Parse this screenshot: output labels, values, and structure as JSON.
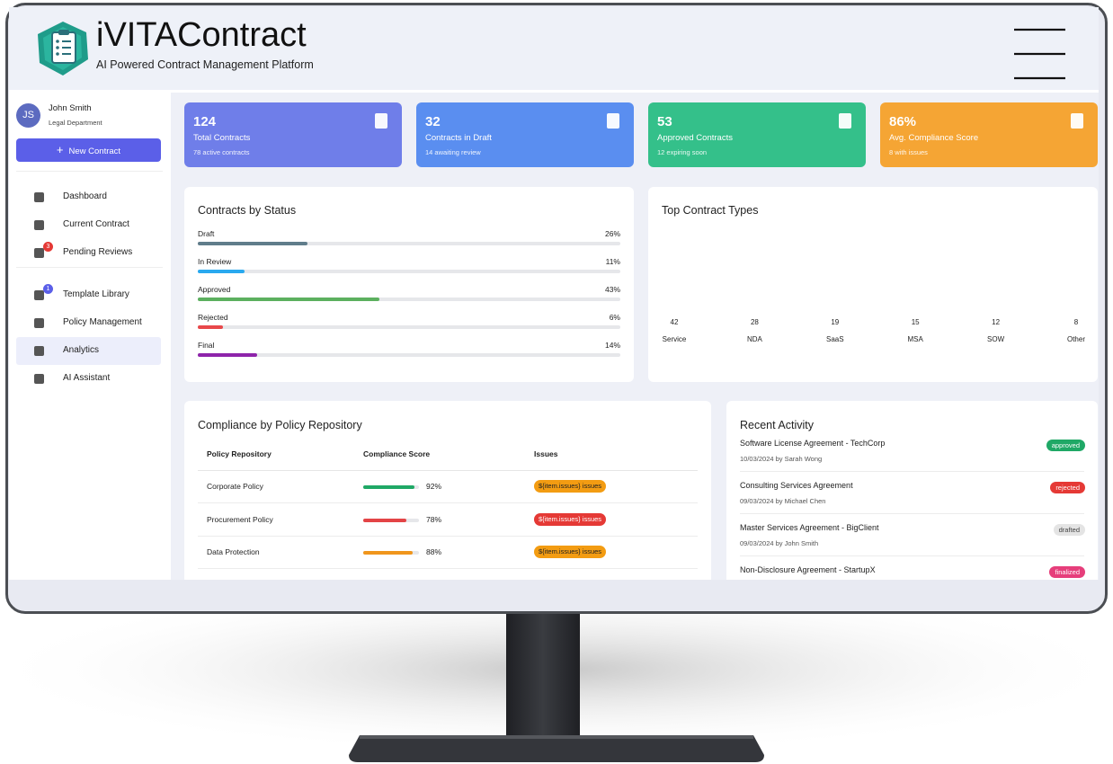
{
  "header": {
    "title": "iVITAContract",
    "subtitle": "AI Powered Contract Management Platform"
  },
  "user": {
    "initials": "JS",
    "name": "John Smith",
    "department": "Legal Department"
  },
  "new_contract_button": "New Contract",
  "nav": [
    {
      "label": "Dashboard"
    },
    {
      "label": "Current Contract"
    },
    {
      "label": "Pending Reviews",
      "badge": 3
    },
    {
      "label": "Template Library",
      "badge": 1
    },
    {
      "label": "Policy Management"
    },
    {
      "label": "Analytics",
      "active": true
    },
    {
      "label": "AI Assistant"
    }
  ],
  "stats": [
    {
      "value": 124,
      "label": "Total Contracts",
      "note": "78 active contracts",
      "color": "#6f7ee9"
    },
    {
      "value": 32,
      "label": "Contracts in Draft",
      "note": "14 awaiting review",
      "color": "#5a8ef0"
    },
    {
      "value": 53,
      "label": "Approved Contracts",
      "note": "12 expiring soon",
      "color": "#34c08a"
    },
    {
      "value": "86%",
      "label": "Avg. Compliance Score",
      "note": "8 with issues",
      "color": "#f5a534"
    }
  ],
  "status_panel": {
    "title": "Contracts by Status",
    "rows": [
      {
        "label": "Draft",
        "value": 26,
        "value_label": "26%",
        "color": "#607d8b"
      },
      {
        "label": "In Review",
        "value": 11,
        "value_label": "11%",
        "color": "#29a9ef"
      },
      {
        "label": "Approved",
        "value": 43,
        "value_label": "43%",
        "color": "#5cb05f"
      },
      {
        "label": "Rejected",
        "value": 6,
        "value_label": "6%",
        "color": "#e8484a"
      },
      {
        "label": "Final",
        "value": 14,
        "value_label": "14%",
        "color": "#8e24aa"
      }
    ]
  },
  "types_panel": {
    "title": "Top Contract Types",
    "items": [
      {
        "label": "Service",
        "value": 42
      },
      {
        "label": "NDA",
        "value": 28
      },
      {
        "label": "SaaS",
        "value": 19
      },
      {
        "label": "MSA",
        "value": 15
      },
      {
        "label": "SOW",
        "value": 12
      },
      {
        "label": "Other",
        "value": 8
      }
    ]
  },
  "compliance_panel": {
    "title": "Compliance by Policy Repository",
    "columns": [
      "Policy Repository",
      "Compliance Score",
      "Issues"
    ],
    "rows": [
      {
        "policy": "Corporate Policy",
        "score": 92,
        "score_label": "92%",
        "bar_color": "#1fa866",
        "issues": "${item.issues} issues",
        "issue_color": "#f39c12"
      },
      {
        "policy": "Procurement Policy",
        "score": 78,
        "score_label": "78%",
        "bar_color": "#e34446",
        "issues": "${item.issues} issues",
        "issue_color": "#e53935"
      },
      {
        "policy": "Data Protection",
        "score": 88,
        "score_label": "88%",
        "bar_color": "#f0961c",
        "issues": "${item.issues} issues",
        "issue_color": "#f39c12"
      }
    ]
  },
  "activity_panel": {
    "title": "Recent Activity",
    "items": [
      {
        "title": "Software License Agreement - TechCorp",
        "meta": "10/03/2024 by Sarah Wong",
        "status": "approved",
        "status_color": "#1fa866",
        "status_text_color": "#ffffff"
      },
      {
        "title": "Consulting Services Agreement",
        "meta": "09/03/2024 by Michael Chen",
        "status": "rejected",
        "status_color": "#e53935",
        "status_text_color": "#ffffff"
      },
      {
        "title": "Master Services Agreement - BigClient",
        "meta": "09/03/2024 by John Smith",
        "status": "drafted",
        "status_color": "#e4e4e4",
        "status_text_color": "#444444"
      },
      {
        "title": "Non-Disclosure Agreement - StartupX",
        "meta": "",
        "status": "finalized",
        "status_color": "#e63e7b",
        "status_text_color": "#ffffff"
      }
    ]
  }
}
